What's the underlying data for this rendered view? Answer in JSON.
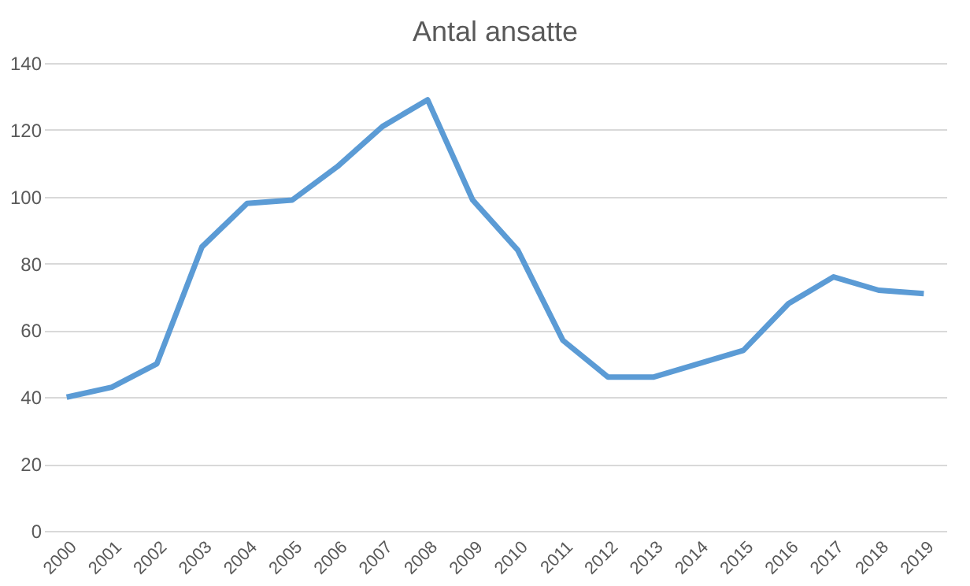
{
  "chart_data": {
    "type": "line",
    "title": "Antal ansatte",
    "categories": [
      "2000",
      "2001",
      "2002",
      "2003",
      "2004",
      "2005",
      "2006",
      "2007",
      "2008",
      "2009",
      "2010",
      "2011",
      "2012",
      "2013",
      "2014",
      "2015",
      "2016",
      "2017",
      "2018",
      "2019"
    ],
    "series": [
      {
        "color": "#5b9bd5",
        "values": [
          40,
          43,
          50,
          85,
          98,
          99,
          109,
          121,
          129,
          99,
          84,
          57,
          46,
          46,
          50,
          54,
          68,
          76,
          72,
          71
        ]
      }
    ],
    "ylim": [
      0,
      140
    ],
    "yticks": [
      0,
      20,
      40,
      60,
      80,
      100,
      120,
      140
    ],
    "grid": "y",
    "legend": false,
    "marker": "none",
    "line_style": "solid"
  }
}
